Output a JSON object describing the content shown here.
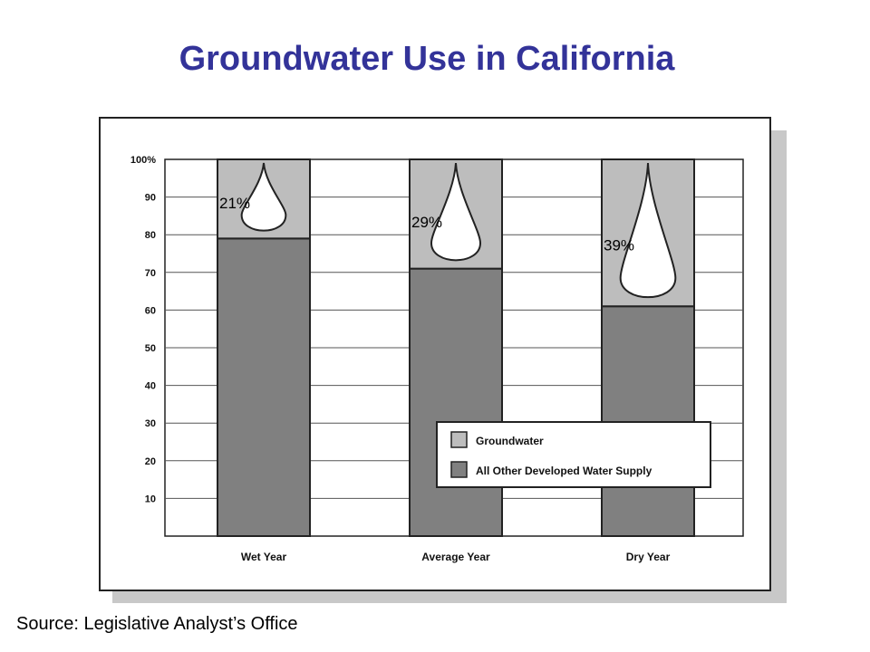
{
  "title": "Groundwater Use in California",
  "source": "Source: Legislative Analyst’s Office",
  "colors": {
    "title": "#333399",
    "groundwater": "#bdbdbd",
    "other_supply": "#808080",
    "frame_shadow": "#c8c8c8"
  },
  "chart_data": {
    "type": "bar",
    "stacked": true,
    "categories": [
      "Wet Year",
      "Average Year",
      "Dry Year"
    ],
    "series": [
      {
        "name": "All Other Developed Water Supply",
        "values": [
          79,
          71,
          61
        ]
      },
      {
        "name": "Groundwater",
        "values": [
          21,
          29,
          39
        ]
      }
    ],
    "data_labels": [
      "21%",
      "29%",
      "39%"
    ],
    "yticks": [
      "10",
      "20",
      "30",
      "40",
      "50",
      "60",
      "70",
      "80",
      "90",
      "100%"
    ],
    "ylim": [
      0,
      100
    ],
    "grid": true,
    "legend": {
      "position": "bottom-right",
      "entries": [
        "Groundwater",
        "All Other Developed Water Supply"
      ]
    },
    "annotations": "water drop icon in each groundwater segment"
  }
}
